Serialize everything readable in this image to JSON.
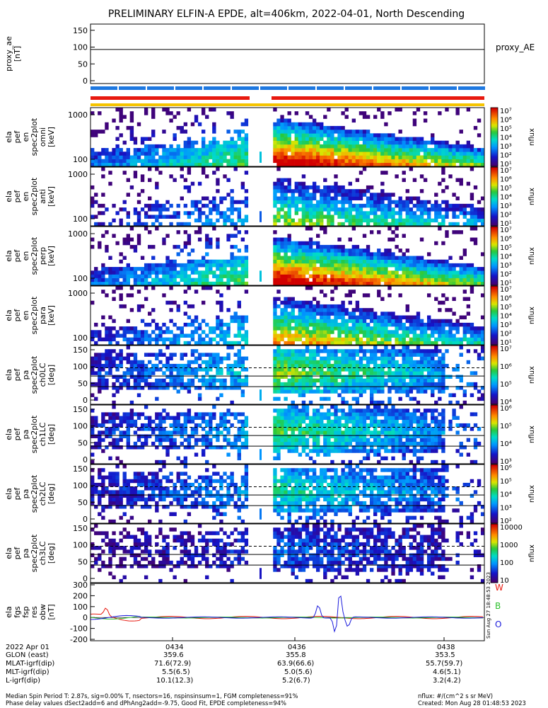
{
  "title": "PRELIMINARY ELFIN-A EPDE, alt=406km, 2022-04-01, North Descending",
  "colors": {
    "bar_red": "#e8190f",
    "bar_blue": "#1e78e0",
    "bar_yellow": "#f5c400",
    "line_black": "#000000",
    "line_red": "#e8190f",
    "line_green": "#2ec02e",
    "line_blue": "#1a1adc"
  },
  "chart_data": [
    {
      "type": "line",
      "panel": "proxy_ae",
      "ylabel_lines": [
        "proxy_ae",
        "[nT]"
      ],
      "right_label": "proxy_AE",
      "ylim": [
        0,
        160
      ],
      "yticks": [
        "0",
        "50",
        "100",
        "150"
      ],
      "series": [
        {
          "values": [
            93,
            93,
            93,
            93,
            93
          ]
        }
      ]
    },
    {
      "type": "heatmap",
      "panel": "energy-1",
      "ylabel_lines": [
        "ela",
        "pef",
        "en",
        "spec2plot",
        "omni",
        "[keV]"
      ],
      "yticks": [
        "100",
        "1000"
      ],
      "colorbar_ticks": [
        "10^7",
        "10^6",
        "10^5",
        "10^4",
        "10^3",
        "10^2",
        "10^1"
      ],
      "colorbar_label": "nflux"
    },
    {
      "type": "heatmap",
      "panel": "energy-2",
      "ylabel_lines": [
        "ela",
        "pef",
        "en",
        "spec2plot",
        "anti",
        "[keV]"
      ],
      "yticks": [
        "100",
        "1000"
      ],
      "colorbar_ticks": [
        "10^7",
        "10^6",
        "10^5",
        "10^4",
        "10^3",
        "10^2",
        "10^1"
      ],
      "colorbar_label": "nflux"
    },
    {
      "type": "heatmap",
      "panel": "energy-3",
      "ylabel_lines": [
        "ela",
        "pef",
        "en",
        "spec2plot",
        "perp",
        "[keV]"
      ],
      "yticks": [
        "100",
        "1000"
      ],
      "colorbar_ticks": [
        "10^7",
        "10^6",
        "10^5",
        "10^4",
        "10^3",
        "10^2",
        "10^1"
      ],
      "colorbar_label": "nflux"
    },
    {
      "type": "heatmap",
      "panel": "energy-4",
      "ylabel_lines": [
        "ela",
        "pef",
        "en",
        "spec2plot",
        "para",
        "[keV]"
      ],
      "yticks": [
        "100",
        "1000"
      ],
      "colorbar_ticks": [
        "10^7",
        "10^6",
        "10^5",
        "10^4",
        "10^3",
        "10^2",
        "10^1"
      ],
      "colorbar_label": "nflux"
    },
    {
      "type": "heatmap",
      "panel": "pitch-ch0",
      "ylabel_lines": [
        "ela",
        "pef",
        "pa",
        "spec2plot",
        "ch0LC",
        "[deg]"
      ],
      "yticks": [
        "0",
        "50",
        "100",
        "150"
      ],
      "colorbar_ticks": [
        "10^7",
        "10^6",
        "10^5",
        "10^4"
      ],
      "colorbar_label": "nflux"
    },
    {
      "type": "heatmap",
      "panel": "pitch-ch1",
      "ylabel_lines": [
        "ela",
        "pef",
        "pa",
        "spec2plot",
        "ch1LC",
        "[deg]"
      ],
      "yticks": [
        "0",
        "50",
        "100",
        "150"
      ],
      "colorbar_ticks": [
        "10^6",
        "10^5",
        "10^4",
        "10^3"
      ],
      "colorbar_label": "nflux"
    },
    {
      "type": "heatmap",
      "panel": "pitch-ch2",
      "ylabel_lines": [
        "ela",
        "pef",
        "pa",
        "spec2plot",
        "ch2LC",
        "[deg]"
      ],
      "yticks": [
        "0",
        "50",
        "100",
        "150"
      ],
      "colorbar_ticks": [
        "10^6",
        "10^5",
        "10^4",
        "10^3",
        "10^2"
      ],
      "colorbar_label": "nflux"
    },
    {
      "type": "heatmap",
      "panel": "pitch-ch3",
      "ylabel_lines": [
        "ela",
        "pef",
        "pa",
        "spec2plot",
        "ch3LC",
        "[deg]"
      ],
      "yticks": [
        "0",
        "50",
        "100",
        "150"
      ],
      "colorbar_ticks": [
        "10000",
        "1000",
        "100",
        "10"
      ],
      "colorbar_label": "nflux"
    },
    {
      "type": "line",
      "panel": "magnetic",
      "ylabel_lines": [
        "ela",
        "fgs",
        "fsp",
        "res",
        "obw",
        "[nT]"
      ],
      "ylim": [
        -200,
        300
      ],
      "yticks": [
        "-200",
        "-100",
        "0",
        "100",
        "200",
        "300"
      ],
      "series": [
        {
          "name": "W"
        },
        {
          "name": "B"
        },
        {
          "name": "O"
        }
      ],
      "side_stamp": "Sun Aug 27 18:48:53 2023"
    }
  ],
  "xaxis": {
    "rows": [
      {
        "label": "2022 Apr 01",
        "values": [
          "0434",
          "0436",
          "0438"
        ]
      },
      {
        "label": "GLON (east)",
        "values": [
          "359.6",
          "355.8",
          "353.5"
        ]
      },
      {
        "label": "MLAT-igrf(dip)",
        "values": [
          "71.6(72.9)",
          "63.9(66.6)",
          "55.7(59.7)"
        ]
      },
      {
        "label": "MLT-igrf(dip)",
        "values": [
          "5.5(6.5)",
          "5.0(5.6)",
          "4.6(5.1)"
        ]
      },
      {
        "label": "L-igrf(dip)",
        "values": [
          "10.1(12.3)",
          "5.2(6.7)",
          "3.2(4.2)"
        ]
      }
    ]
  },
  "footer": {
    "line1": "Median Spin Period T: 2.87s, sig=0.00% T, nsectors=16, nspinsinsum=1, FGM completeness=91%",
    "line2": "Phase delay values dSect2add=6 and dPhAng2add=-9.75, Good Fit, EPDE completeness=94%",
    "units": "nflux: #/(cm^2 s sr MeV)",
    "created": "Created: Mon Aug 28 01:48:53 2023"
  }
}
